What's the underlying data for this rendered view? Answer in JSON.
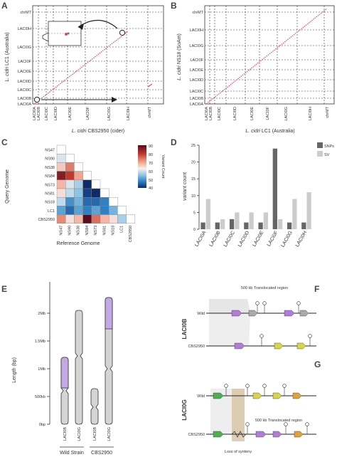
{
  "panels": {
    "A": {
      "letter": "A",
      "xlabel_italic": "L. cidri",
      "xlabel_rest": " CBS2950 (cider)",
      "ylabel_italic": "L. cidri",
      "ylabel_rest": " LC1 (Australia)",
      "x_ticks": [
        "LACI0A",
        "LACI0B",
        "LACI0C",
        "LACI0D",
        "LACI0E",
        "LACI0F",
        "LACI0G",
        "LACI0H",
        "chrMT"
      ],
      "y_ticks": [
        "chrMT",
        "LACI0H",
        "LACI0G",
        "LACI0F",
        "LACI0E",
        "LACI0D",
        "LACI0C",
        "LACI0B",
        "LACI0A"
      ]
    },
    "B": {
      "letter": "B",
      "xlabel_italic": "L. cidri",
      "xlabel_rest": " LC1 (Australia)",
      "ylabel_italic": "L. cidri",
      "ylabel_rest": " NS18 (SoAm)",
      "x_ticks": [
        "LACI0A",
        "LACI0B",
        "LACI0C",
        "LACI0D",
        "LACI0E",
        "LACI0F",
        "LACI0G",
        "LACI0H",
        "chrMT"
      ],
      "y_ticks": [
        "chrMT",
        "LACI0H",
        "LACI0G",
        "LACI0F",
        "LACI0E",
        "LACI0D",
        "LACI0C",
        "LACI0B",
        "LACI0A"
      ]
    },
    "C": {
      "letter": "C",
      "ylabel": "Query Genome",
      "xlabel": "Reference Genome",
      "rows": [
        "NS47",
        "NS90",
        "NS38",
        "NS84",
        "NS73",
        "NS81",
        "NS18",
        "LC1",
        "CBS2950"
      ],
      "cols": [
        "NS47",
        "NS90",
        "NS38",
        "NS84",
        "NS73",
        "NS81",
        "NS18",
        "LC1",
        "CBS2950"
      ],
      "legend_title": "Variant Count",
      "legend_ticks": [
        "90",
        "80",
        "70",
        "60",
        "50",
        "40"
      ]
    },
    "D": {
      "letter": "D",
      "ylabel": "variant count",
      "legend": [
        "SNPs",
        "SV"
      ]
    },
    "E": {
      "letter": "E",
      "ylabel": "Length (bp)",
      "y_ticks": [
        "2Mb",
        "1.5Mb",
        "1Mb",
        "500kb",
        "0bp"
      ],
      "chrom_labels": [
        "LACI0B",
        "LACI0G",
        "LACI0B",
        "LACI0G"
      ],
      "groups": [
        "Wild Strain",
        "CBS2950"
      ]
    },
    "F": {
      "letter": "F",
      "side_label": "LACI0B",
      "top_label": "500 kb Translocated region",
      "row1": "Wild",
      "row2": "CBS2950"
    },
    "G": {
      "letter": "G",
      "side_label": "LACI0G",
      "mid_label": "500 kb Translocated region",
      "row1": "Wild",
      "row2": "CBS2950",
      "bottom_label": "Loss of synteny"
    }
  },
  "chart_data": [
    {
      "type": "heatmap",
      "rows": [
        "NS47",
        "NS90",
        "NS38",
        "NS84",
        "NS73",
        "NS81",
        "NS18",
        "LC1",
        "CBS2950"
      ],
      "cols": [
        "NS47",
        "NS90",
        "NS38",
        "NS84",
        "NS73",
        "NS81",
        "NS18",
        "LC1",
        "CBS2950"
      ],
      "values": [
        [
          null,
          null,
          null,
          null,
          null,
          null,
          null,
          null,
          null
        ],
        [
          62,
          null,
          null,
          null,
          null,
          null,
          null,
          null,
          null
        ],
        [
          68,
          75,
          null,
          null,
          null,
          null,
          null,
          null,
          null
        ],
        [
          86,
          80,
          72,
          null,
          null,
          null,
          null,
          null,
          null
        ],
        [
          70,
          62,
          58,
          40,
          null,
          null,
          null,
          null,
          null
        ],
        [
          66,
          60,
          56,
          42,
          38,
          null,
          null,
          null,
          null
        ],
        [
          60,
          50,
          54,
          46,
          46,
          48,
          null,
          null,
          null
        ],
        [
          52,
          46,
          52,
          48,
          52,
          48,
          54,
          null,
          null
        ],
        [
          74,
          66,
          70,
          90,
          76,
          70,
          66,
          58,
          null
        ]
      ],
      "zlim": [
        40,
        90
      ]
    },
    {
      "type": "bar",
      "categories": [
        "LACI0A",
        "LACI0B",
        "LACI0C",
        "LACI0D",
        "LACI0E",
        "LACI0F",
        "LACI0G",
        "LACI0H"
      ],
      "series": [
        {
          "name": "SNPs",
          "values": [
            2,
            2,
            3,
            2,
            2,
            24,
            2,
            2
          ],
          "color": "#666666"
        },
        {
          "name": "SV",
          "values": [
            9,
            3,
            5,
            5,
            5,
            3,
            9,
            11
          ],
          "color": "#cccccc"
        }
      ],
      "ylim": [
        0,
        25
      ],
      "y_ticks": [
        0,
        5,
        10,
        15,
        20,
        25
      ]
    }
  ]
}
